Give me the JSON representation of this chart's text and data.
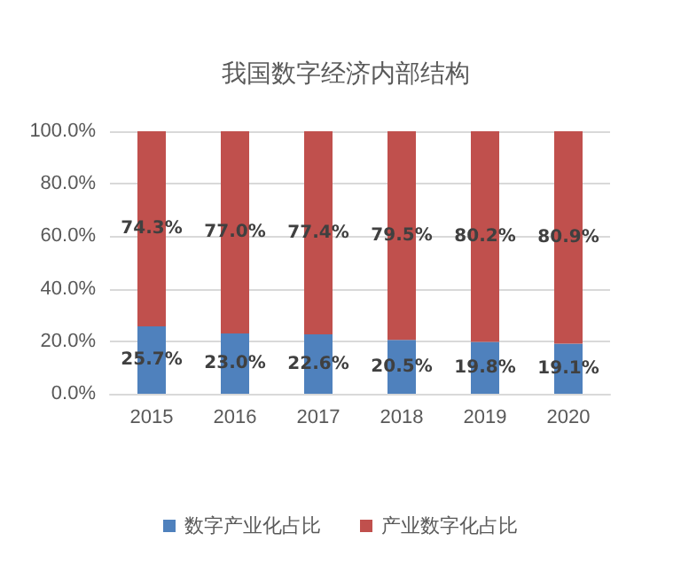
{
  "chart_data": {
    "type": "bar",
    "title": "我国数字经济内部结构",
    "categories": [
      "2015",
      "2016",
      "2017",
      "2018",
      "2019",
      "2020"
    ],
    "stacked": true,
    "series": [
      {
        "name": "数字产业化占比",
        "color": "#4f81bd",
        "values": [
          25.7,
          23.0,
          22.6,
          20.5,
          19.8,
          19.1
        ],
        "value_labels": [
          "25.7%",
          "23.0%",
          "22.6%",
          "20.5%",
          "19.8%",
          "19.1%"
        ]
      },
      {
        "name": "产业数字化占比",
        "color": "#c0504d",
        "values": [
          74.3,
          77.0,
          77.4,
          79.5,
          80.2,
          80.9
        ],
        "value_labels": [
          "74.3%",
          "77.0%",
          "77.4%",
          "79.5%",
          "80.2%",
          "80.9%"
        ]
      }
    ],
    "ylim": [
      0,
      100
    ],
    "yticks": [
      {
        "value": 0,
        "label": "0.0%"
      },
      {
        "value": 20,
        "label": "20.0%"
      },
      {
        "value": 40,
        "label": "40.0%"
      },
      {
        "value": 60,
        "label": "60.0%"
      },
      {
        "value": 80,
        "label": "80.0%"
      },
      {
        "value": 100,
        "label": "100.0%"
      }
    ],
    "grid": "y",
    "legend": "bottom"
  }
}
